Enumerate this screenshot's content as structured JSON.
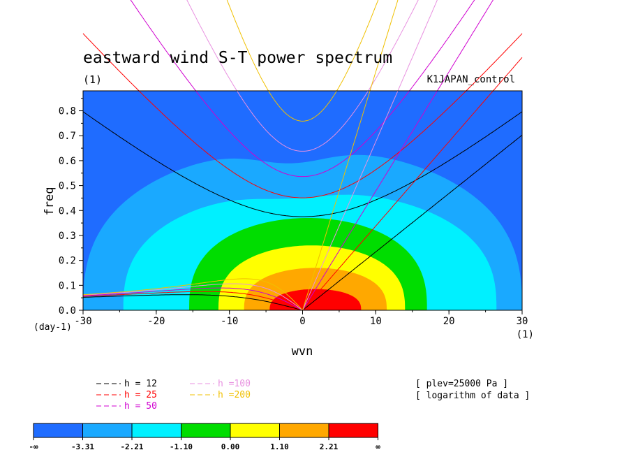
{
  "chart_data": {
    "type": "heatmap",
    "title": "eastward wind S-T power spectrum",
    "units_left": "(1)",
    "experiment": "K1JAPAN_control",
    "xlabel": "wvn",
    "x_units": "(1)",
    "ylabel": "freq",
    "y_units": "(day-1)",
    "xlim": [
      -30,
      30
    ],
    "ylim": [
      0.0,
      0.88
    ],
    "xticks": [
      "-30",
      "-20",
      "-10",
      "0",
      "10",
      "20",
      "30"
    ],
    "yticks": [
      "0.0",
      "0.1",
      "0.2",
      "0.3",
      "0.4",
      "0.5",
      "0.6",
      "0.7",
      "0.8"
    ],
    "xtick_values": [
      -30,
      -20,
      -10,
      0,
      10,
      20,
      30
    ],
    "ytick_values": [
      0.0,
      0.1,
      0.2,
      0.3,
      0.4,
      0.5,
      0.6,
      0.7,
      0.8
    ],
    "contour_levels": [
      "-∞",
      "-3.31",
      "-2.21",
      "-1.10",
      "0.00",
      "1.10",
      "2.21",
      "∞"
    ],
    "level_colors": [
      "#1f6cff",
      "#1aa9ff",
      "#00f0ff",
      "#00dd00",
      "#ffff00",
      "#ffa800",
      "#ff0000"
    ],
    "regions": [
      {
        "level": 1,
        "x_left": -30,
        "x_right": 30,
        "y_top": 0.65,
        "dip": 0.06
      },
      {
        "level": 2,
        "x_left": -24.5,
        "x_right": 26.5,
        "y_top": 0.48,
        "dip": 0.03
      },
      {
        "level": 3,
        "x_left": -15.5,
        "x_right": 17,
        "y_top": 0.37,
        "dip": 0
      },
      {
        "level": 4,
        "x_left": -11.5,
        "x_right": 14,
        "y_top": 0.26,
        "dip": 0
      },
      {
        "level": 5,
        "x_left": -8,
        "x_right": 11.5,
        "y_top": 0.17,
        "dip": 0
      },
      {
        "level": 6,
        "x_left": -4.5,
        "x_right": 8,
        "y_top": 0.085,
        "dip": 0
      }
    ],
    "dispersion_curves": [
      {
        "label": "h = 12",
        "h": 12,
        "color": "#000000"
      },
      {
        "label": "h = 25",
        "h": 25,
        "color": "#ff0000"
      },
      {
        "label": "h = 50",
        "h": 50,
        "color": "#d000d0"
      },
      {
        "label": "h =100",
        "h": 100,
        "color": "#e890e0"
      },
      {
        "label": "h =200",
        "h": 200,
        "color": "#f0c000"
      }
    ],
    "info_lines": [
      "[ plev=25000 Pa ]",
      "[ logarithm of data ]"
    ]
  }
}
